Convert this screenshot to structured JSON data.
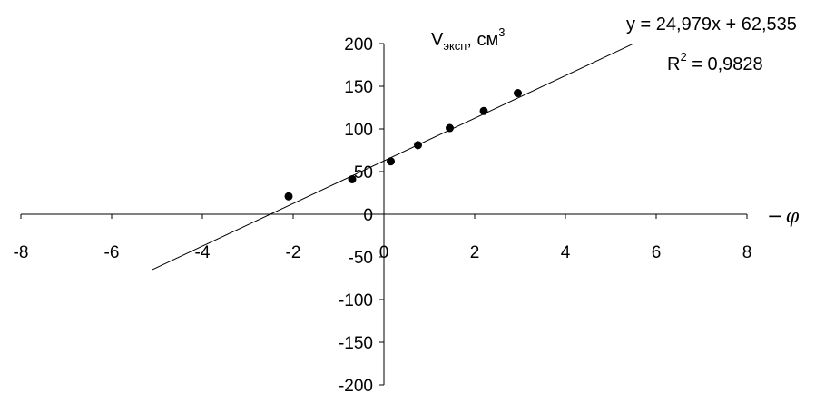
{
  "chart_data": {
    "type": "scatter",
    "ylabel_main": "V",
    "ylabel_sub": "эксп",
    "ylabel_unit": ", см",
    "ylabel_sup": "3",
    "xlabel_sign": "−",
    "xlabel_symbol": "φ",
    "xlim": [
      -8,
      8
    ],
    "ylim": [
      -200,
      200
    ],
    "x_ticks": [
      -8,
      -6,
      -4,
      -2,
      0,
      2,
      4,
      6,
      8
    ],
    "y_ticks": [
      200,
      150,
      100,
      50,
      0,
      -50,
      -100,
      -150,
      -200
    ],
    "grid": false,
    "series": [
      {
        "points": [
          {
            "x": -2.1,
            "y": 21
          },
          {
            "x": -0.7,
            "y": 41
          },
          {
            "x": 0.15,
            "y": 62
          },
          {
            "x": 0.75,
            "y": 81
          },
          {
            "x": 1.45,
            "y": 101
          },
          {
            "x": 2.2,
            "y": 121
          },
          {
            "x": 2.95,
            "y": 142
          }
        ]
      }
    ],
    "trendline": {
      "slope": 24.979,
      "intercept": 62.535,
      "x_range": [
        -5.1,
        5.5
      ],
      "equation": "y = 24,979x + 62,535",
      "r2_prefix": "R",
      "r2_sup": "2",
      "r2_suffix": " = 0,9828"
    }
  }
}
